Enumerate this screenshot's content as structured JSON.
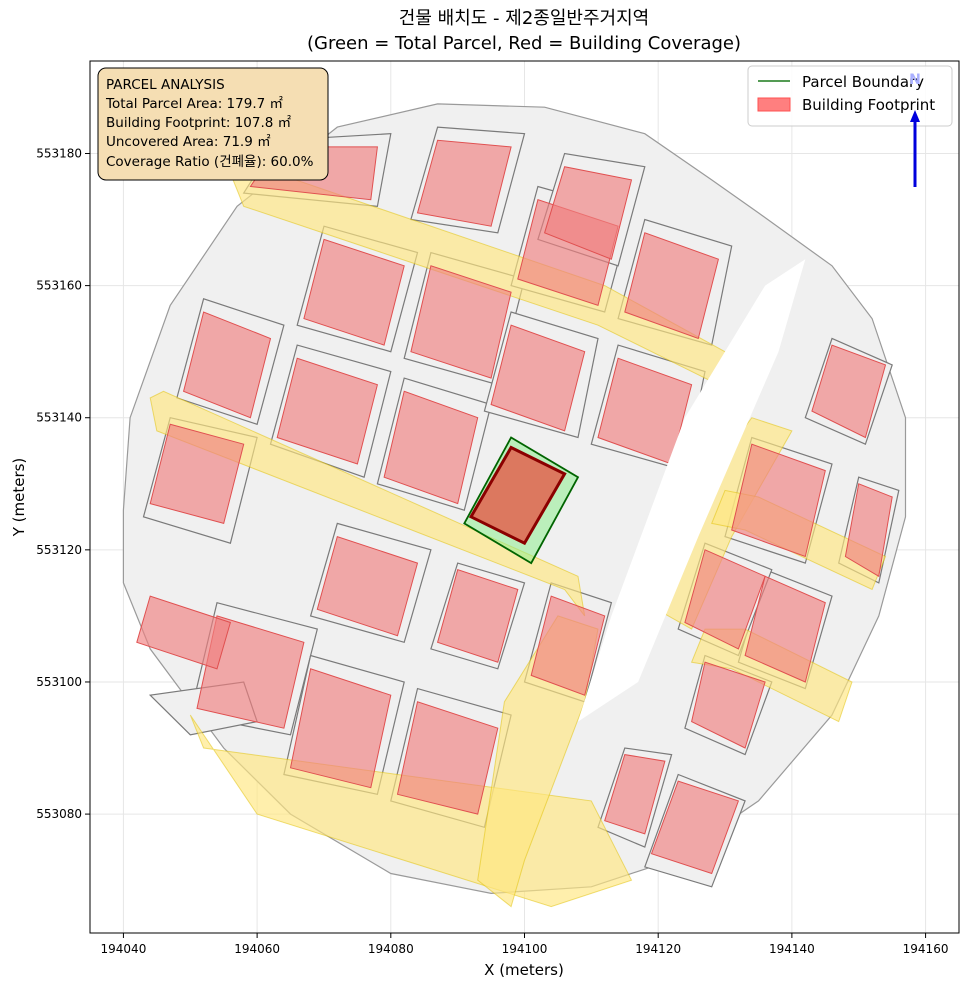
{
  "chart_data": {
    "type": "map",
    "title_line1": "건물 배치도 - 제2종일반주거지역",
    "title_line2": "(Green = Total Parcel, Red = Building Coverage)",
    "xlabel": "X (meters)",
    "ylabel": "Y (meters)",
    "xlim": [
      194035,
      194165
    ],
    "ylim": [
      553062,
      553194
    ],
    "xticks": [
      194040,
      194060,
      194080,
      194100,
      194120,
      194140,
      194160
    ],
    "yticks": [
      553080,
      553100,
      553120,
      553140,
      553160,
      553180
    ],
    "grid": true,
    "legend": {
      "placement": "top-right",
      "entries": [
        {
          "label": "Parcel Boundary",
          "kind": "line",
          "color": "#1b7a1b"
        },
        {
          "label": "Building Footprint",
          "kind": "patch",
          "color": "#ff7f7f"
        }
      ]
    },
    "info_box": {
      "placement": "top-left",
      "lines": [
        "PARCEL ANALYSIS",
        "Total Parcel Area: 179.7 ㎡",
        "Building Footprint: 107.8 ㎡",
        "Uncovered Area: 71.9 ㎡",
        "Coverage Ratio (건폐율): 60.0%"
      ]
    },
    "north_arrow": {
      "label": "N",
      "color": "#0000dd"
    },
    "target_parcel": {
      "area_m2": 179.7,
      "polygon": [
        [
          194091,
          553124
        ],
        [
          194098,
          553137
        ],
        [
          194108,
          553131
        ],
        [
          194101,
          553118
        ]
      ]
    },
    "target_building": {
      "area_m2": 107.8,
      "polygon": [
        [
          194092,
          553125
        ],
        [
          194098,
          553135.5
        ],
        [
          194106,
          553131.5
        ],
        [
          194100,
          553121
        ]
      ]
    },
    "context_boundary": [
      [
        194040,
        553126
      ],
      [
        194041,
        553140
      ],
      [
        194047,
        553157
      ],
      [
        194057,
        553172
      ],
      [
        194072,
        553184
      ],
      [
        194087,
        553187.5
      ],
      [
        194103,
        553187
      ],
      [
        194118,
        553183
      ],
      [
        194128,
        553176
      ],
      [
        194135,
        553171
      ],
      [
        194146,
        553163
      ],
      [
        194152,
        553155
      ],
      [
        194157,
        553140
      ],
      [
        194157,
        553125
      ],
      [
        194153,
        553110
      ],
      [
        194146,
        553095
      ],
      [
        194135,
        553082
      ],
      [
        194122,
        553073
      ],
      [
        194110,
        553069
      ],
      [
        194095,
        553068
      ],
      [
        194080,
        553071
      ],
      [
        194065,
        553080
      ],
      [
        194055,
        553090
      ],
      [
        194044,
        553105
      ],
      [
        194040,
        553115
      ]
    ],
    "context_parcels": [
      [
        [
          194043,
          553125
        ],
        [
          194047,
          553140
        ],
        [
          194060,
          553137
        ],
        [
          194056,
          553121
        ]
      ],
      [
        [
          194048,
          553143
        ],
        [
          194052,
          553158
        ],
        [
          194064,
          553154
        ],
        [
          194060,
          553139
        ]
      ],
      [
        [
          194062,
          553136
        ],
        [
          194066,
          553151
        ],
        [
          194080,
          553147
        ],
        [
          194076,
          553131
        ]
      ],
      [
        [
          194066,
          553154
        ],
        [
          194070,
          553169
        ],
        [
          194084,
          553165
        ],
        [
          194080,
          553150
        ]
      ],
      [
        [
          194078,
          553130
        ],
        [
          194082,
          553146
        ],
        [
          194095,
          553142
        ],
        [
          194091,
          553126
        ]
      ],
      [
        [
          194082,
          553149
        ],
        [
          194086,
          553165
        ],
        [
          194100,
          553161
        ],
        [
          194096,
          553145
        ]
      ],
      [
        [
          194094,
          553141
        ],
        [
          194098,
          553156
        ],
        [
          194111,
          553152
        ],
        [
          194108,
          553137
        ]
      ],
      [
        [
          194098,
          553160
        ],
        [
          194102,
          553175
        ],
        [
          194116,
          553171
        ],
        [
          194112,
          553156
        ]
      ],
      [
        [
          194110,
          553136
        ],
        [
          194114,
          553151
        ],
        [
          194127,
          553147
        ],
        [
          194124,
          553132
        ]
      ],
      [
        [
          194114,
          553155
        ],
        [
          194118,
          553170
        ],
        [
          194131,
          553166
        ],
        [
          194128,
          553151
        ]
      ],
      [
        [
          194058,
          553174
        ],
        [
          194063,
          553182
        ],
        [
          194080,
          553183
        ],
        [
          194078,
          553172
        ]
      ],
      [
        [
          194083,
          553170
        ],
        [
          194087,
          553184
        ],
        [
          194100,
          553183
        ],
        [
          194096,
          553168
        ]
      ],
      [
        [
          194102,
          553167
        ],
        [
          194106,
          553180
        ],
        [
          194118,
          553178
        ],
        [
          194114,
          553163
        ]
      ],
      [
        [
          194050,
          553095
        ],
        [
          194054,
          553112
        ],
        [
          194069,
          553108
        ],
        [
          194065,
          553092
        ]
      ],
      [
        [
          194064,
          553086
        ],
        [
          194068,
          553104
        ],
        [
          194082,
          553100
        ],
        [
          194078,
          553083
        ]
      ],
      [
        [
          194080,
          553082
        ],
        [
          194084,
          553099
        ],
        [
          194098,
          553095
        ],
        [
          194094,
          553078
        ]
      ],
      [
        [
          194068,
          553110
        ],
        [
          194072,
          553124
        ],
        [
          194086,
          553120
        ],
        [
          194082,
          553106
        ]
      ],
      [
        [
          194086,
          553105
        ],
        [
          194090,
          553118
        ],
        [
          194100,
          553115
        ],
        [
          194096,
          553102
        ]
      ],
      [
        [
          194100,
          553100
        ],
        [
          194104,
          553115
        ],
        [
          194113,
          553112
        ],
        [
          194109,
          553097
        ]
      ],
      [
        [
          194111,
          553078
        ],
        [
          194115,
          553090
        ],
        [
          194122,
          553089
        ],
        [
          194118,
          553075
        ]
      ],
      [
        [
          194118,
          553072
        ],
        [
          194123,
          553086
        ],
        [
          194133,
          553082
        ],
        [
          194128,
          553069
        ]
      ],
      [
        [
          194124,
          553093
        ],
        [
          194127,
          553104
        ],
        [
          194137,
          553100
        ],
        [
          194133,
          553089
        ]
      ],
      [
        [
          194132,
          553103
        ],
        [
          194136,
          553117
        ],
        [
          194146,
          553113
        ],
        [
          194142,
          553099
        ]
      ],
      [
        [
          194123,
          553108
        ],
        [
          194127,
          553121
        ],
        [
          194137,
          553117
        ],
        [
          194132,
          553104
        ]
      ],
      [
        [
          194130,
          553122
        ],
        [
          194134,
          553137
        ],
        [
          194146,
          553133
        ],
        [
          194142,
          553118
        ]
      ],
      [
        [
          194142,
          553140
        ],
        [
          194146,
          553152
        ],
        [
          194155,
          553148
        ],
        [
          194151,
          553136
        ]
      ],
      [
        [
          194147,
          553118
        ],
        [
          194150,
          553131
        ],
        [
          194156,
          553129
        ],
        [
          194153,
          553115
        ]
      ],
      [
        [
          194044,
          553098
        ],
        [
          194050,
          553092
        ],
        [
          194060,
          553094
        ],
        [
          194058,
          553100
        ]
      ]
    ],
    "context_buildings": [
      [
        [
          194044,
          553127
        ],
        [
          194047,
          553139
        ],
        [
          194058,
          553136
        ],
        [
          194055,
          553124
        ]
      ],
      [
        [
          194049,
          553144
        ],
        [
          194052,
          553156
        ],
        [
          194062,
          553152
        ],
        [
          194059,
          553140
        ]
      ],
      [
        [
          194063,
          553137
        ],
        [
          194066,
          553149
        ],
        [
          194078,
          553145
        ],
        [
          194075,
          553133
        ]
      ],
      [
        [
          194067,
          553155
        ],
        [
          194070,
          553167
        ],
        [
          194082,
          553163
        ],
        [
          194079,
          553151
        ]
      ],
      [
        [
          194079,
          553131
        ],
        [
          194082,
          553144
        ],
        [
          194093,
          553140
        ],
        [
          194090,
          553127
        ]
      ],
      [
        [
          194083,
          553150
        ],
        [
          194086,
          553163
        ],
        [
          194098,
          553159
        ],
        [
          194095,
          553146
        ]
      ],
      [
        [
          194095,
          553142
        ],
        [
          194098,
          553154
        ],
        [
          194109,
          553150
        ],
        [
          194106,
          553138
        ]
      ],
      [
        [
          194099,
          553161
        ],
        [
          194102,
          553173
        ],
        [
          194114,
          553169
        ],
        [
          194111,
          553157
        ]
      ],
      [
        [
          194111,
          553137
        ],
        [
          194114,
          553149
        ],
        [
          194125,
          553145
        ],
        [
          194122,
          553133
        ]
      ],
      [
        [
          194115,
          553156
        ],
        [
          194118,
          553168
        ],
        [
          194129,
          553164
        ],
        [
          194126,
          553152
        ]
      ],
      [
        [
          194059,
          553175
        ],
        [
          194063,
          553181
        ],
        [
          194078,
          553181
        ],
        [
          194077,
          553173
        ]
      ],
      [
        [
          194084,
          553171
        ],
        [
          194087,
          553182
        ],
        [
          194098,
          553181
        ],
        [
          194095,
          553169
        ]
      ],
      [
        [
          194103,
          553168
        ],
        [
          194106,
          553178
        ],
        [
          194116,
          553176
        ],
        [
          194113,
          553164
        ]
      ],
      [
        [
          194051,
          553096
        ],
        [
          194054,
          553110
        ],
        [
          194067,
          553106
        ],
        [
          194064,
          553093
        ]
      ],
      [
        [
          194065,
          553087
        ],
        [
          194068,
          553102
        ],
        [
          194080,
          553098
        ],
        [
          194077,
          553084
        ]
      ],
      [
        [
          194081,
          553083
        ],
        [
          194084,
          553097
        ],
        [
          194096,
          553093
        ],
        [
          194093,
          553080
        ]
      ],
      [
        [
          194069,
          553111
        ],
        [
          194072,
          553122
        ],
        [
          194084,
          553118
        ],
        [
          194081,
          553107
        ]
      ],
      [
        [
          194087,
          553106
        ],
        [
          194090,
          553117
        ],
        [
          194099,
          553114
        ],
        [
          194096,
          553103
        ]
      ],
      [
        [
          194101,
          553101
        ],
        [
          194104,
          553113
        ],
        [
          194112,
          553110
        ],
        [
          194109,
          553098
        ]
      ],
      [
        [
          194112,
          553079
        ],
        [
          194115,
          553089
        ],
        [
          194121,
          553088
        ],
        [
          194118,
          553077
        ]
      ],
      [
        [
          194119,
          553074
        ],
        [
          194123,
          553085
        ],
        [
          194132,
          553082
        ],
        [
          194128,
          553071
        ]
      ],
      [
        [
          194125,
          553094
        ],
        [
          194127,
          553103
        ],
        [
          194136,
          553100
        ],
        [
          194133,
          553090
        ]
      ],
      [
        [
          194133,
          553104
        ],
        [
          194136,
          553116
        ],
        [
          194145,
          553112
        ],
        [
          194142,
          553100
        ]
      ],
      [
        [
          194124,
          553109
        ],
        [
          194127,
          553120
        ],
        [
          194136,
          553116
        ],
        [
          194132,
          553105
        ]
      ],
      [
        [
          194131,
          553123
        ],
        [
          194134,
          553136
        ],
        [
          194145,
          553132
        ],
        [
          194142,
          553119
        ]
      ],
      [
        [
          194143,
          553141
        ],
        [
          194146,
          553151
        ],
        [
          194154,
          553148
        ],
        [
          194151,
          553137
        ]
      ],
      [
        [
          194148,
          553119
        ],
        [
          194150,
          553130
        ],
        [
          194155,
          553128
        ],
        [
          194153,
          553116
        ]
      ],
      [
        [
          194042,
          553106
        ],
        [
          194044,
          553113
        ],
        [
          194056,
          553109
        ],
        [
          194054,
          553102
        ]
      ]
    ],
    "road_areas": [
      [
        [
          194056,
          553177
        ],
        [
          194058,
          553172
        ],
        [
          194111,
          553154
        ],
        [
          194131,
          553144
        ],
        [
          194130,
          553150
        ],
        [
          194112,
          553160
        ],
        [
          194060,
          553178
        ]
      ],
      [
        [
          194044,
          553143
        ],
        [
          194045,
          553138
        ],
        [
          194106,
          553114
        ],
        [
          194109,
          553110
        ],
        [
          194108,
          553116
        ],
        [
          194046,
          553144
        ]
      ],
      [
        [
          194050,
          553095
        ],
        [
          194052,
          553090
        ],
        [
          194110,
          553082
        ],
        [
          194116,
          553070
        ],
        [
          194104,
          553066
        ],
        [
          194060,
          553080
        ]
      ],
      [
        [
          194098,
          553066
        ],
        [
          194100,
          553073
        ],
        [
          194109,
          553097
        ],
        [
          194111,
          553108
        ],
        [
          194105,
          553110
        ],
        [
          194097,
          553097
        ],
        [
          194093,
          553070
        ]
      ],
      [
        [
          194118,
          553112
        ],
        [
          194123,
          553125
        ],
        [
          194134,
          553140
        ],
        [
          194140,
          553138
        ],
        [
          194131,
          553122
        ],
        [
          194125,
          553108
        ]
      ],
      [
        [
          194125,
          553103
        ],
        [
          194131,
          553102
        ],
        [
          194147,
          553094
        ],
        [
          194149,
          553100
        ],
        [
          194133,
          553108
        ],
        [
          194127,
          553108
        ]
      ],
      [
        [
          194128,
          553124
        ],
        [
          194133,
          553123
        ],
        [
          194152,
          553114
        ],
        [
          194154,
          553119
        ],
        [
          194135,
          553128
        ],
        [
          194130,
          553129
        ]
      ]
    ],
    "open_gap": [
      [
        194113,
        553110
      ],
      [
        194124,
        553140
      ],
      [
        194136,
        553160
      ],
      [
        194142,
        553164
      ],
      [
        194138,
        553150
      ],
      [
        194126,
        553122
      ],
      [
        194117,
        553100
      ],
      [
        194108,
        553094
      ]
    ]
  }
}
